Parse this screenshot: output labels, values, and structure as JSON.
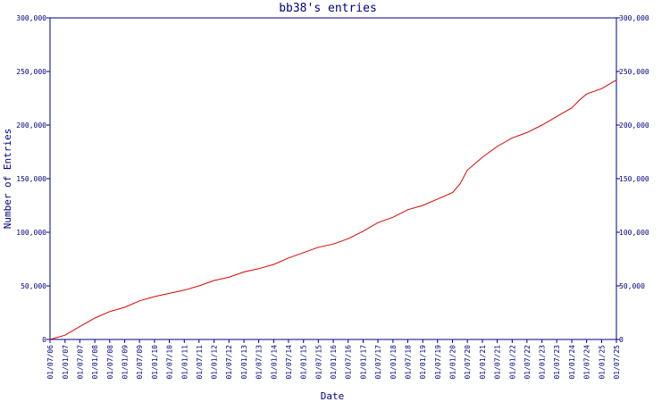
{
  "chart_data": {
    "type": "line",
    "title": "bb38's entries",
    "xlabel": "Date",
    "ylabel": "Number of Entries",
    "ylim": [
      0,
      300000
    ],
    "xlim": [
      "2006-07-01",
      "2025-07-01"
    ],
    "y_ticks": [
      0,
      50000,
      100000,
      150000,
      200000,
      250000,
      300000
    ],
    "y_tick_labels": [
      "0",
      "50,000",
      "100,000",
      "150,000",
      "200,000",
      "250,000",
      "300,000"
    ],
    "x_ticks": [
      "2006-07-01",
      "2007-01-01",
      "2007-07-01",
      "2008-01-01",
      "2008-07-01",
      "2009-01-01",
      "2009-07-01",
      "2010-01-01",
      "2010-07-01",
      "2011-01-01",
      "2011-07-01",
      "2012-01-01",
      "2012-07-01",
      "2013-01-01",
      "2013-07-01",
      "2014-01-01",
      "2014-07-01",
      "2015-01-01",
      "2015-07-01",
      "2016-01-01",
      "2016-07-01",
      "2017-01-01",
      "2017-07-01",
      "2018-01-01",
      "2018-07-01",
      "2019-01-01",
      "2019-07-01",
      "2020-01-01",
      "2020-07-01",
      "2021-01-01",
      "2021-07-01",
      "2022-01-01",
      "2022-07-01",
      "2023-01-01",
      "2023-07-01",
      "2024-01-01",
      "2024-07-01",
      "2025-01-01",
      "2025-07-01"
    ],
    "x_tick_labels": [
      "01/07/06",
      "01/01/07",
      "01/07/07",
      "01/01/08",
      "01/07/08",
      "01/01/09",
      "01/07/09",
      "01/01/10",
      "01/07/10",
      "01/01/11",
      "01/07/11",
      "01/01/12",
      "01/07/12",
      "01/01/13",
      "01/07/13",
      "01/01/14",
      "01/07/14",
      "01/01/15",
      "01/07/15",
      "01/01/16",
      "01/07/16",
      "01/01/17",
      "01/07/17",
      "01/01/18",
      "01/07/18",
      "01/01/19",
      "01/07/19",
      "01/01/20",
      "01/07/20",
      "01/01/21",
      "01/07/21",
      "01/01/22",
      "01/07/22",
      "01/01/23",
      "01/07/23",
      "01/01/24",
      "01/07/24",
      "01/01/25",
      "01/07/25"
    ],
    "grid": false,
    "legend": "none",
    "line_color": "#dd0000",
    "axis_color": "#000080",
    "series": [
      {
        "x": [
          "2006-07-01",
          "2007-01-01",
          "2007-07-01",
          "2008-01-01",
          "2008-07-01",
          "2009-01-01",
          "2009-07-01",
          "2010-01-01",
          "2010-07-01",
          "2011-01-01",
          "2011-07-01",
          "2012-01-01",
          "2012-07-01",
          "2013-01-01",
          "2013-07-01",
          "2014-01-01",
          "2014-07-01",
          "2015-01-01",
          "2015-07-01",
          "2016-01-01",
          "2016-07-01",
          "2017-01-01",
          "2017-07-01",
          "2018-01-01",
          "2018-07-01",
          "2019-01-01",
          "2019-07-01",
          "2020-01-01",
          "2020-04-01",
          "2020-07-01",
          "2021-01-01",
          "2021-07-01",
          "2022-01-01",
          "2022-07-01",
          "2023-01-01",
          "2023-07-01",
          "2024-01-01",
          "2024-04-01",
          "2024-07-01",
          "2025-01-01",
          "2025-07-01"
        ],
        "y": [
          0,
          4000,
          12000,
          20000,
          26000,
          30000,
          36000,
          40000,
          43000,
          46000,
          50000,
          55000,
          58000,
          63000,
          66000,
          70000,
          76000,
          81000,
          86000,
          89000,
          94000,
          101000,
          109000,
          114000,
          121000,
          125000,
          131000,
          137000,
          145000,
          158000,
          170000,
          180000,
          188000,
          193000,
          200000,
          208000,
          216000,
          223000,
          229000,
          234000,
          242000
        ]
      }
    ]
  }
}
